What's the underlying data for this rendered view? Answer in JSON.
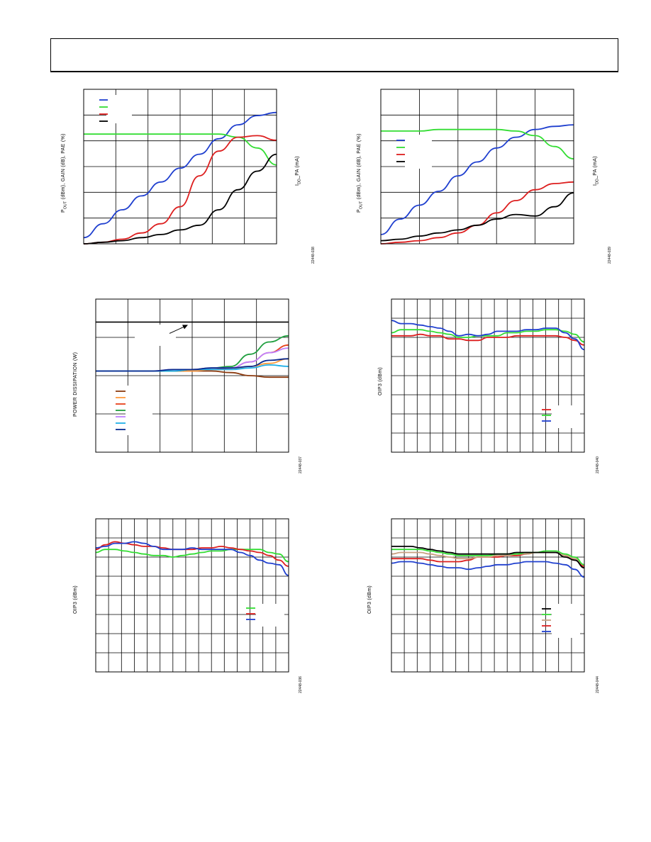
{
  "header": {},
  "chart_data": [
    {
      "type": "line",
      "ylabel": [
        "P",
        "OUT",
        " (dBm), GAIN (dB), PAE (%)"
      ],
      "y2label": [
        "I",
        "DD",
        "_PA (mA)"
      ],
      "figure_id": "22448-038",
      "legend_colors": [
        "#1f3fcf",
        "#33dd33",
        "#dd1f1f",
        "#000000"
      ],
      "x": [
        0,
        10,
        20,
        30,
        40,
        50,
        60,
        70,
        80,
        90,
        100
      ],
      "ylim": [
        0,
        100
      ],
      "series": [
        {
          "color": "#1f3fcf",
          "values": [
            4,
            13,
            22,
            31,
            40,
            49,
            58,
            68,
            77,
            83,
            85
          ]
        },
        {
          "color": "#33dd33",
          "values": [
            71,
            71,
            71,
            71,
            71,
            71,
            71,
            71,
            69,
            62,
            51
          ]
        },
        {
          "color": "#dd1f1f",
          "values": [
            0,
            1,
            3,
            7,
            13,
            24,
            44,
            60,
            69,
            70,
            67
          ]
        },
        {
          "color": "#000000",
          "values": [
            0,
            1,
            2,
            4,
            6,
            9,
            12,
            22,
            35,
            47,
            58
          ]
        }
      ]
    },
    {
      "type": "line",
      "ylabel": [
        "P",
        "OUT",
        " (dBm), GAIN (dB), PAE (%)"
      ],
      "y2label": [
        "I",
        "DD",
        "_PA (mA)"
      ],
      "figure_id": "22448-039",
      "legend_colors": [
        "#1f3fcf",
        "#33dd33",
        "#dd1f1f",
        "#000000"
      ],
      "x": [
        0,
        10,
        20,
        30,
        40,
        50,
        60,
        70,
        80,
        90,
        100
      ],
      "ylim": [
        0,
        100
      ],
      "series": [
        {
          "color": "#1f3fcf",
          "values": [
            6,
            16,
            25,
            34,
            44,
            53,
            62,
            69,
            74,
            76,
            77
          ]
        },
        {
          "color": "#33dd33",
          "values": [
            73,
            73,
            73,
            74,
            74,
            74,
            74,
            73,
            70,
            63,
            55
          ]
        },
        {
          "color": "#dd1f1f",
          "values": [
            0,
            1,
            2,
            4,
            7,
            12,
            20,
            28,
            35,
            39,
            40
          ]
        },
        {
          "color": "#000000",
          "values": [
            2,
            3,
            5,
            7,
            9,
            12,
            16,
            19,
            18,
            24,
            33
          ]
        }
      ]
    },
    {
      "type": "line",
      "ylabel": [
        "POWER DISSIPATION (W)"
      ],
      "figure_id": "22448-037",
      "legend_colors": [
        "#8b3a0f",
        "#ff9a3c",
        "#e8401a",
        "#1f9f3f",
        "#c080ff",
        "#1fb0e8",
        "#0a2a8f"
      ],
      "x": [
        0,
        10,
        20,
        30,
        40,
        50,
        60,
        70,
        80,
        90,
        100
      ],
      "ylim": [
        0,
        100
      ],
      "hline": 85,
      "series": [
        {
          "color": "#8b3a0f",
          "values": [
            53,
            53,
            53,
            53,
            53,
            53,
            53,
            52,
            50,
            49,
            49
          ]
        },
        {
          "color": "#ff9a3c",
          "values": [
            53,
            53,
            53,
            53,
            53,
            53,
            54,
            54,
            56,
            58,
            61
          ]
        },
        {
          "color": "#e8401a",
          "values": [
            53,
            53,
            53,
            53,
            53,
            54,
            54,
            55,
            59,
            65,
            70
          ]
        },
        {
          "color": "#1f9f3f",
          "values": [
            53,
            53,
            53,
            53,
            53,
            54,
            55,
            56,
            64,
            72,
            76
          ]
        },
        {
          "color": "#c080ff",
          "values": [
            53,
            53,
            53,
            53,
            54,
            54,
            55,
            55,
            59,
            65,
            68
          ]
        },
        {
          "color": "#1fb0e8",
          "values": [
            53,
            53,
            53,
            53,
            53,
            54,
            54,
            54,
            55,
            57,
            56
          ]
        },
        {
          "color": "#0a2a8f",
          "values": [
            53,
            53,
            53,
            53,
            54,
            54,
            55,
            55,
            56,
            60,
            61
          ]
        }
      ]
    },
    {
      "type": "line",
      "ylabel": [
        "OIP3 (dBm)"
      ],
      "figure_id": "22448-040",
      "legend_colors": [
        "#dd1f1f",
        "#33dd33",
        "#1f3fcf"
      ],
      "x": [
        0,
        5,
        10,
        15,
        20,
        25,
        30,
        35,
        40,
        45,
        50,
        55,
        60,
        65,
        70,
        75,
        80,
        85,
        90,
        95,
        100
      ],
      "ylim": [
        0,
        100
      ],
      "series": [
        {
          "color": "#dd1f1f",
          "values": [
            76,
            76,
            76,
            77,
            76,
            76,
            74,
            74,
            73,
            73,
            75,
            75,
            75,
            76,
            76,
            76,
            76,
            76,
            75,
            73,
            70
          ]
        },
        {
          "color": "#33dd33",
          "values": [
            78,
            80,
            80,
            80,
            79,
            78,
            77,
            75,
            75,
            76,
            76,
            76,
            78,
            78,
            79,
            79,
            80,
            80,
            79,
            77,
            72
          ]
        },
        {
          "color": "#1f3fcf",
          "values": [
            86,
            84,
            84,
            83,
            82,
            81,
            79,
            76,
            77,
            76,
            77,
            79,
            79,
            79,
            80,
            80,
            81,
            81,
            78,
            74,
            67
          ]
        }
      ]
    },
    {
      "type": "line",
      "ylabel": [
        "OIP3 (dBm)"
      ],
      "figure_id": "22448-036",
      "legend_colors": [
        "#33dd33",
        "#dd1f1f",
        "#1f3fcf"
      ],
      "x": [
        0,
        5,
        10,
        15,
        20,
        25,
        30,
        35,
        40,
        45,
        50,
        55,
        60,
        65,
        70,
        75,
        80,
        85,
        90,
        95,
        100
      ],
      "ylim": [
        0,
        100
      ],
      "series": [
        {
          "color": "#33dd33",
          "values": [
            78,
            80,
            80,
            79,
            78,
            77,
            76,
            76,
            75,
            76,
            77,
            78,
            79,
            79,
            80,
            80,
            80,
            80,
            78,
            77,
            72
          ]
        },
        {
          "color": "#dd1f1f",
          "values": [
            80,
            83,
            85,
            84,
            83,
            82,
            82,
            81,
            80,
            80,
            80,
            81,
            81,
            82,
            81,
            80,
            79,
            78,
            76,
            73,
            69
          ]
        },
        {
          "color": "#1f3fcf",
          "values": [
            81,
            82,
            84,
            84,
            85,
            84,
            82,
            80,
            80,
            80,
            81,
            80,
            80,
            80,
            80,
            78,
            76,
            73,
            71,
            70,
            63
          ]
        }
      ]
    },
    {
      "type": "line",
      "ylabel": [
        "OIP3 (dBm)"
      ],
      "figure_id": "22448-044",
      "legend_colors": [
        "#000000",
        "#33dd33",
        "#c8a080",
        "#dd1f1f",
        "#1f3fcf"
      ],
      "x": [
        0,
        5,
        10,
        15,
        20,
        25,
        30,
        35,
        40,
        45,
        50,
        55,
        60,
        65,
        70,
        75,
        80,
        85,
        90,
        95,
        100
      ],
      "ylim": [
        0,
        100
      ],
      "series": [
        {
          "color": "#1f3fcf",
          "values": [
            71,
            72,
            72,
            71,
            70,
            69,
            68,
            68,
            67,
            68,
            69,
            70,
            70,
            71,
            72,
            72,
            72,
            71,
            70,
            67,
            62
          ]
        },
        {
          "color": "#dd1f1f",
          "values": [
            74,
            74,
            74,
            74,
            73,
            72,
            72,
            72,
            73,
            75,
            75,
            75,
            76,
            76,
            77,
            78,
            78,
            78,
            76,
            73,
            69
          ]
        },
        {
          "color": "#c8a080",
          "values": [
            77,
            78,
            78,
            78,
            77,
            76,
            75,
            74,
            74,
            75,
            75,
            76,
            76,
            77,
            77,
            78,
            78,
            78,
            76,
            74,
            70
          ]
        },
        {
          "color": "#33dd33",
          "values": [
            80,
            80,
            80,
            80,
            79,
            78,
            77,
            76,
            76,
            76,
            76,
            77,
            77,
            77,
            78,
            78,
            79,
            79,
            77,
            75,
            70
          ]
        },
        {
          "color": "#000000",
          "values": [
            82,
            82,
            82,
            81,
            80,
            79,
            78,
            77,
            77,
            77,
            77,
            77,
            77,
            78,
            78,
            78,
            78,
            78,
            75,
            73,
            68
          ]
        }
      ]
    }
  ]
}
